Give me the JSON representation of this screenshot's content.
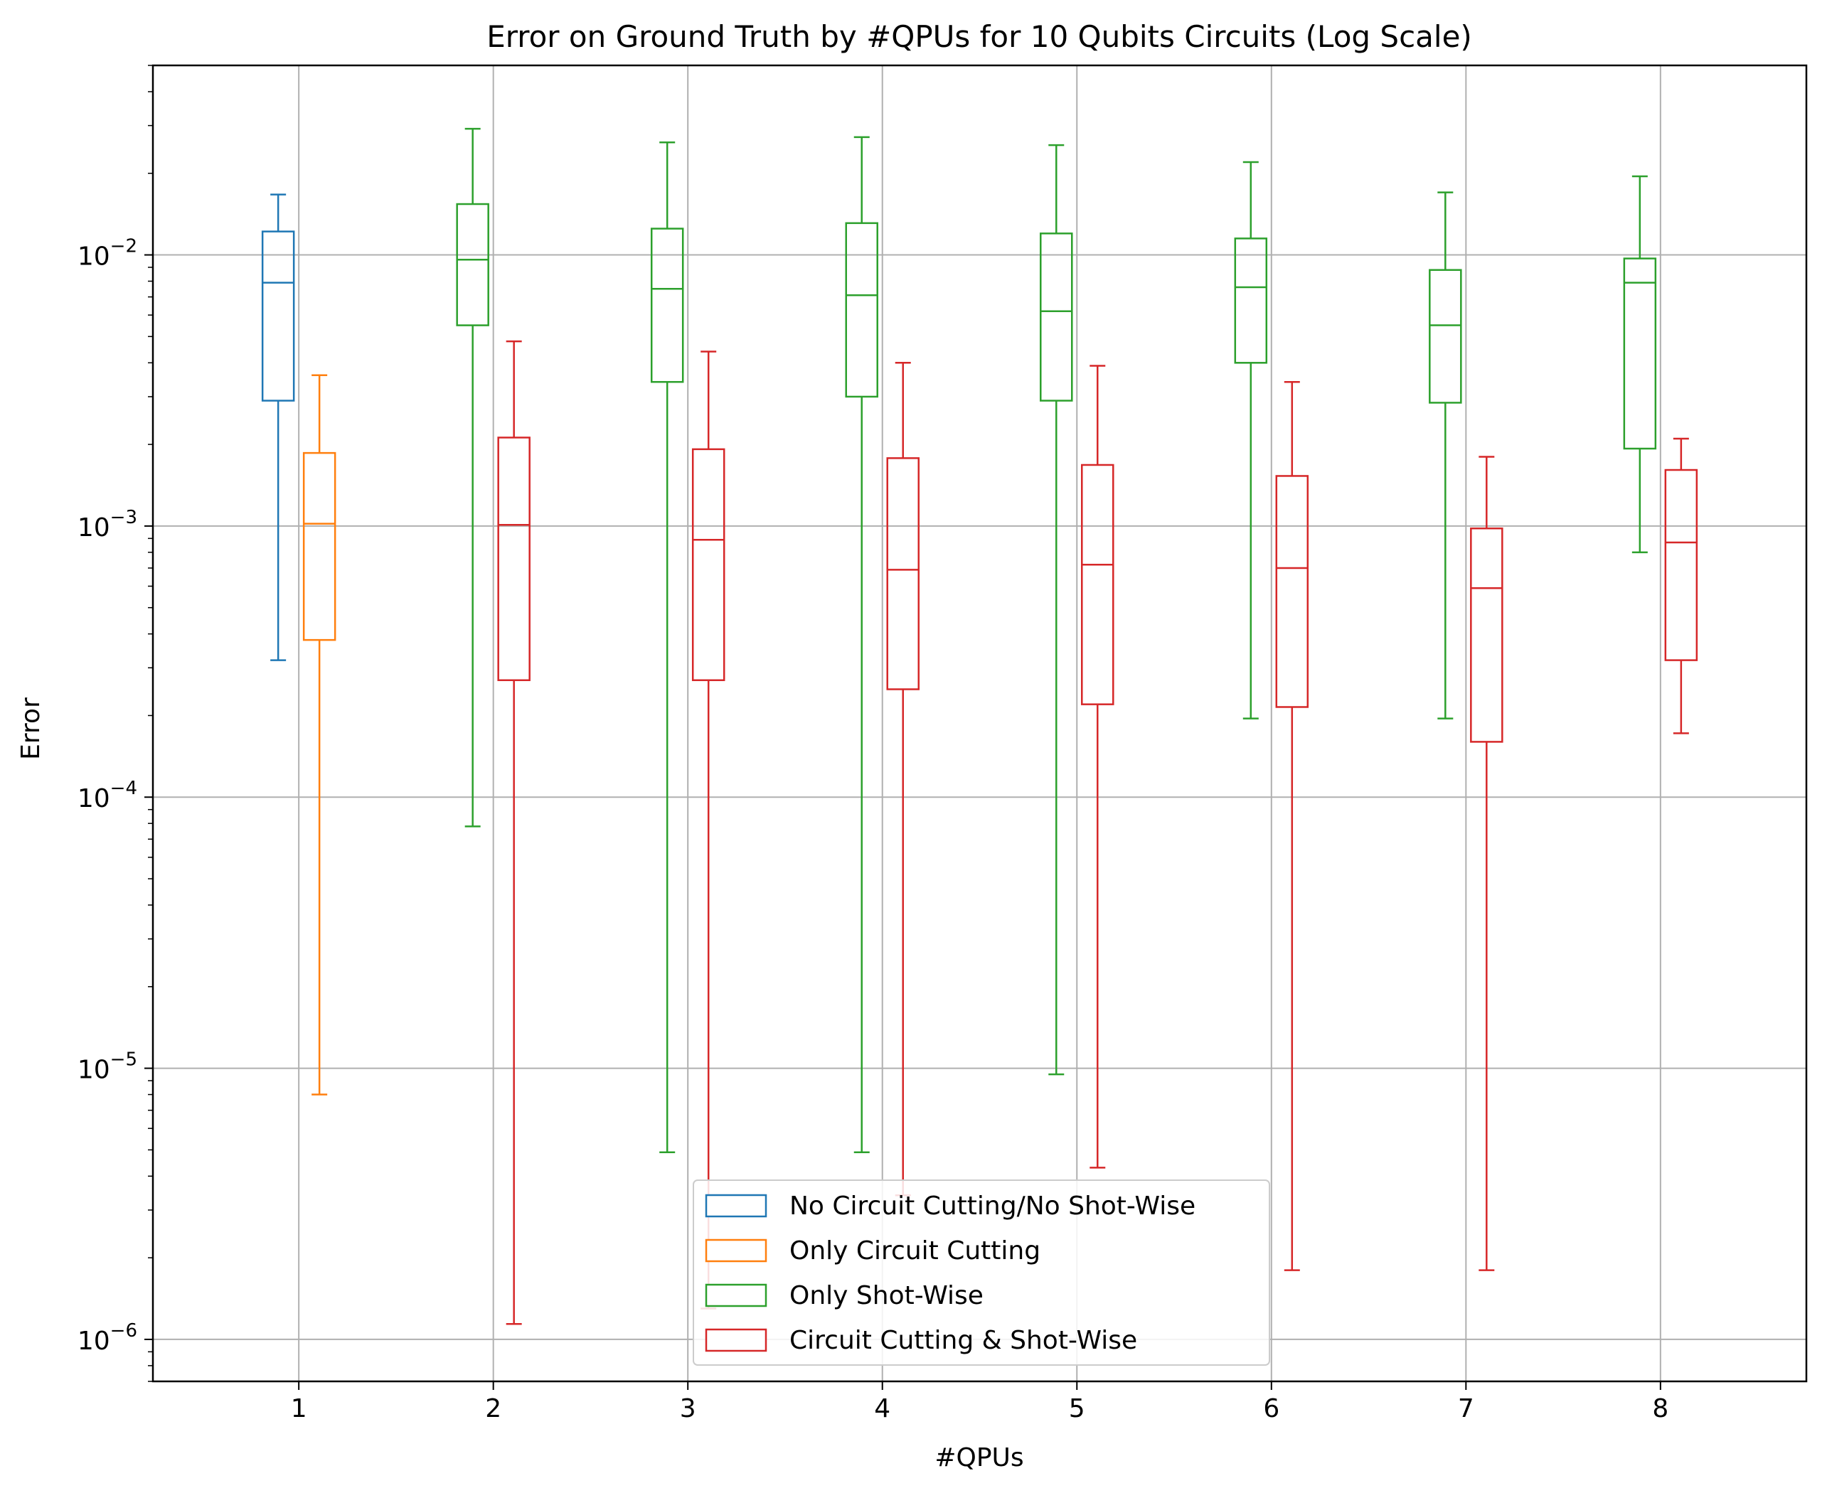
{
  "chart_data": {
    "type": "boxplot",
    "title": "Error on Ground Truth by #QPUs for 10 Qubits Circuits (Log Scale)",
    "xlabel": "#QPUs",
    "ylabel": "Error",
    "yscale": "log",
    "ylim": [
      7e-07,
      0.05
    ],
    "grid": true,
    "legend_position": "lower center",
    "categories": [
      "1",
      "2",
      "3",
      "4",
      "5",
      "6",
      "7",
      "8"
    ],
    "y_ticks": [
      {
        "value": 1e-06,
        "base": "10",
        "exp": "−6"
      },
      {
        "value": 1e-05,
        "base": "10",
        "exp": "−5"
      },
      {
        "value": 0.0001,
        "base": "10",
        "exp": "−4"
      },
      {
        "value": 0.001,
        "base": "10",
        "exp": "−3"
      },
      {
        "value": 0.01,
        "base": "10",
        "exp": "−2"
      }
    ],
    "series": [
      {
        "name": "No Circuit Cutting/No Shot-Wise",
        "color": "#1f77b4",
        "boxes": [
          {
            "category": "1",
            "whisker_low": 0.00032,
            "q1": 0.0029,
            "median": 0.0079,
            "q3": 0.0122,
            "whisker_high": 0.0167
          }
        ]
      },
      {
        "name": "Only Circuit Cutting",
        "color": "#ff7f0e",
        "boxes": [
          {
            "category": "1",
            "whisker_low": 8e-06,
            "q1": 0.00038,
            "median": 0.00102,
            "q3": 0.00186,
            "whisker_high": 0.0036
          }
        ]
      },
      {
        "name": "Only Shot-Wise",
        "color": "#2ca02c",
        "boxes": [
          {
            "category": "2",
            "whisker_low": 7.8e-05,
            "q1": 0.0055,
            "median": 0.0096,
            "q3": 0.0154,
            "whisker_high": 0.0292
          },
          {
            "category": "3",
            "whisker_low": 4.9e-06,
            "q1": 0.0034,
            "median": 0.0075,
            "q3": 0.0125,
            "whisker_high": 0.026
          },
          {
            "category": "4",
            "whisker_low": 4.9e-06,
            "q1": 0.003,
            "median": 0.0071,
            "q3": 0.0131,
            "whisker_high": 0.0272
          },
          {
            "category": "5",
            "whisker_low": 9.5e-06,
            "q1": 0.0029,
            "median": 0.0062,
            "q3": 0.012,
            "whisker_high": 0.0254
          },
          {
            "category": "6",
            "whisker_low": 0.000195,
            "q1": 0.004,
            "median": 0.0076,
            "q3": 0.0115,
            "whisker_high": 0.022
          },
          {
            "category": "7",
            "whisker_low": 0.000195,
            "q1": 0.00285,
            "median": 0.0055,
            "q3": 0.0088,
            "whisker_high": 0.017
          },
          {
            "category": "8",
            "whisker_low": 0.0008,
            "q1": 0.00193,
            "median": 0.0079,
            "q3": 0.0097,
            "whisker_high": 0.0195
          }
        ]
      },
      {
        "name": "Circuit Cutting & Shot-Wise",
        "color": "#d62728",
        "boxes": [
          {
            "category": "2",
            "whisker_low": 1.14e-06,
            "q1": 0.00027,
            "median": 0.00101,
            "q3": 0.00212,
            "whisker_high": 0.0048
          },
          {
            "category": "3",
            "whisker_low": 1.3e-06,
            "q1": 0.00027,
            "median": 0.00089,
            "q3": 0.00192,
            "whisker_high": 0.0044
          },
          {
            "category": "4",
            "whisker_low": 3.4e-06,
            "q1": 0.00025,
            "median": 0.00069,
            "q3": 0.00178,
            "whisker_high": 0.004
          },
          {
            "category": "5",
            "whisker_low": 4.3e-06,
            "q1": 0.00022,
            "median": 0.00072,
            "q3": 0.00168,
            "whisker_high": 0.0039
          },
          {
            "category": "6",
            "whisker_low": 1.8e-06,
            "q1": 0.000215,
            "median": 0.0007,
            "q3": 0.00153,
            "whisker_high": 0.0034
          },
          {
            "category": "7",
            "whisker_low": 1.8e-06,
            "q1": 0.00016,
            "median": 0.00059,
            "q3": 0.00098,
            "whisker_high": 0.0018
          },
          {
            "category": "8",
            "whisker_low": 0.000172,
            "q1": 0.00032,
            "median": 0.00087,
            "q3": 0.00161,
            "whisker_high": 0.0021
          }
        ]
      }
    ]
  }
}
